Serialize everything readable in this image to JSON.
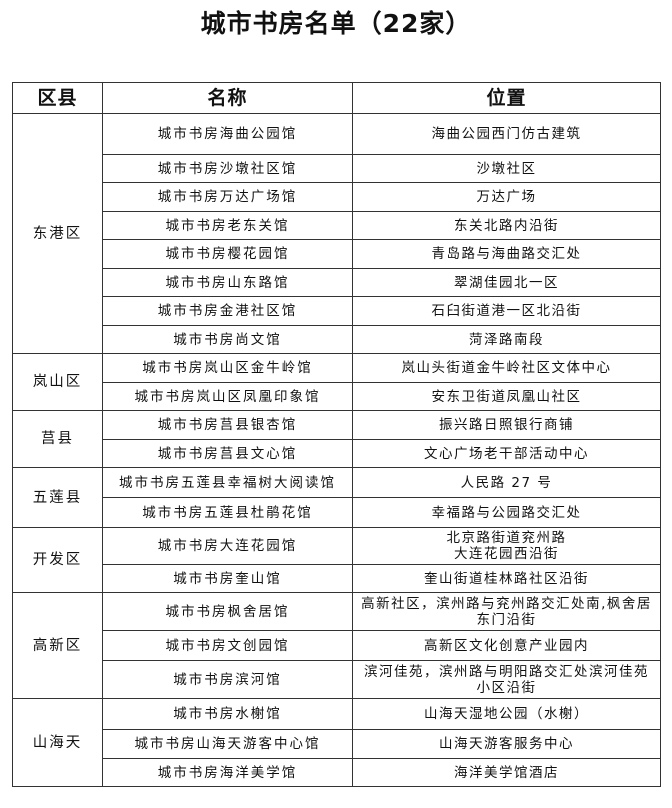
{
  "title": "城市书房名单（22家）",
  "headers": [
    "区县",
    "名称",
    "位置"
  ],
  "groups": [
    {
      "district": "东港区",
      "rows": [
        [
          "城市书房海曲公园馆",
          "海曲公园西门仿古建筑"
        ],
        [
          "城市书房沙墩社区馆",
          "沙墩社区"
        ],
        [
          "城市书房万达广场馆",
          "万达广场"
        ],
        [
          "城市书房老东关馆",
          "东关北路内沿街"
        ],
        [
          "城市书房樱花园馆",
          "青岛路与海曲路交汇处"
        ],
        [
          "城市书房山东路馆",
          "翠湖佳园北一区"
        ],
        [
          "城市书房金港社区馆",
          "石臼街道港一区北沿街"
        ],
        [
          "城市书房尚文馆",
          "菏泽路南段"
        ]
      ]
    },
    {
      "district": "岚山区",
      "rows": [
        [
          "城市书房岚山区金牛岭馆",
          "岚山头街道金牛岭社区文体中心"
        ],
        [
          "城市书房岚山区凤凰印象馆",
          "安东卫街道凤凰山社区"
        ]
      ]
    },
    {
      "district": "莒县",
      "rows": [
        [
          "城市书房莒县银杏馆",
          "振兴路日照银行商铺"
        ],
        [
          "城市书房莒县文心馆",
          "文心广场老干部活动中心"
        ]
      ]
    },
    {
      "district": "五莲县",
      "rows": [
        [
          "城市书房五莲县幸福树大阅读馆",
          "人民路 27 号"
        ],
        [
          "城市书房五莲县杜鹃花馆",
          "幸福路与公园路交汇处"
        ]
      ]
    },
    {
      "district": "开发区",
      "rows": [
        [
          "城市书房大连花园馆",
          "北京路街道兖州路\n大连花园西沿街"
        ],
        [
          "城市书房奎山馆",
          "奎山街道桂林路社区沿街"
        ]
      ]
    },
    {
      "district": "高新区",
      "rows": [
        [
          "城市书房枫舍居馆",
          "高新社区，滨州路与兖州路交汇处南,枫舍居东门沿街"
        ],
        [
          "城市书房文创园馆",
          "高新区文化创意产业园内"
        ],
        [
          "城市书房滨河馆",
          "滨河佳苑，滨州路与明阳路交汇处滨河佳苑小区沿街"
        ]
      ]
    },
    {
      "district": "山海天",
      "rows": [
        [
          "城市书房水榭馆",
          "山海天湿地公园（水榭）"
        ],
        [
          "城市书房山海天游客中心馆",
          "山海天游客服务中心"
        ],
        [
          "城市书房海洋美学馆",
          "海洋美学馆酒店"
        ]
      ]
    }
  ]
}
